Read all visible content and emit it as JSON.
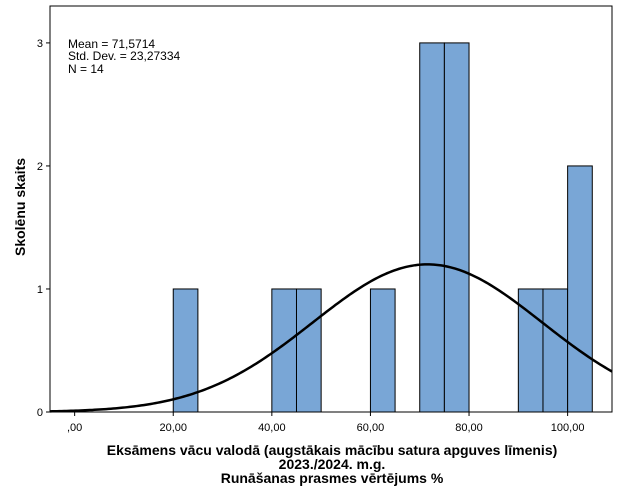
{
  "chart_data": {
    "type": "bar",
    "subtype": "histogram",
    "bin_width": 5,
    "bins": [
      {
        "start": 20,
        "end": 25,
        "count": 1
      },
      {
        "start": 40,
        "end": 45,
        "count": 1
      },
      {
        "start": 45,
        "end": 50,
        "count": 1
      },
      {
        "start": 60,
        "end": 65,
        "count": 1
      },
      {
        "start": 70,
        "end": 75,
        "count": 3
      },
      {
        "start": 75,
        "end": 80,
        "count": 3
      },
      {
        "start": 90,
        "end": 95,
        "count": 1
      },
      {
        "start": 95,
        "end": 100,
        "count": 1
      },
      {
        "start": 100,
        "end": 105,
        "count": 2
      }
    ],
    "xlim": [
      -5,
      109
    ],
    "ylim": [
      0,
      3.3
    ],
    "x_ticks": [
      0,
      20,
      40,
      60,
      80,
      100
    ],
    "x_tick_labels": [
      ",00",
      "20,00",
      "40,00",
      "60,00",
      "80,00",
      "100,00"
    ],
    "y_ticks": [
      0,
      1,
      2,
      3
    ],
    "y_tick_labels": [
      "0",
      "1",
      "2",
      "3"
    ],
    "ylabel": "Skolēnu skaits",
    "xlabel_lines": [
      "Eksāmens vācu valodā (augstākais mācību satura apguves līmenis)",
      "2023./2024. m.g.",
      "Runāšanas prasmes vērtējums %"
    ],
    "stats": {
      "mean_label": "Mean = 71,5714",
      "std_label": "Std. Dev. = 23,27334",
      "n_label": "N = 14"
    },
    "normal_curve": {
      "mean": 71.5714,
      "std": 23.27334,
      "n": 14
    },
    "bar_color": "#79A6D6",
    "bar_stroke": "#000000",
    "curve_color": "#000000",
    "grid": false,
    "legend": "none"
  }
}
